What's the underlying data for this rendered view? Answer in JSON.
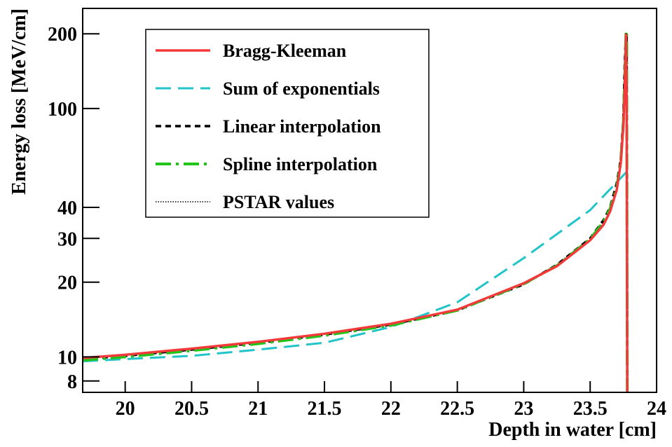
{
  "chart_data": {
    "type": "line",
    "x_label": "Depth in water [cm]",
    "y_label": "Energy loss [MeV/cm]",
    "log_y": true,
    "legend": "upper left",
    "xlim": [
      19.68,
      24
    ],
    "ylim": [
      7.2,
      253
    ],
    "xticks": [
      20,
      20.5,
      21,
      21.5,
      22,
      22.5,
      23,
      23.5,
      24
    ],
    "yticks": [
      8,
      10,
      20,
      30,
      40,
      100,
      200
    ],
    "series": [
      {
        "name": "Bragg-Kleeman",
        "color": "#f33a3a",
        "dash": "none",
        "width": 3.5,
        "x": [
          19.68,
          20,
          20.5,
          21,
          21.5,
          22,
          22.5,
          23,
          23.25,
          23.5,
          23.6,
          23.65,
          23.7,
          23.73,
          23.75,
          23.76,
          23.77,
          23.775,
          23.78
        ],
        "values": [
          9.9,
          10.2,
          10.8,
          11.5,
          12.4,
          13.6,
          15.5,
          19.8,
          23.2,
          29.5,
          34,
          38.5,
          47,
          60,
          85,
          120,
          200,
          100,
          5
        ]
      },
      {
        "name": "Sum of exponentials",
        "color": "#22c4c8",
        "dash": "22,10",
        "width": 3,
        "x": [
          19.68,
          20,
          20.5,
          21,
          21.5,
          22,
          22.5,
          23,
          23.5,
          23.78
        ],
        "values": [
          9.6,
          9.8,
          10.1,
          10.7,
          11.4,
          13.2,
          16.6,
          25,
          39,
          56
        ]
      },
      {
        "name": "Linear interpolation",
        "color": "#000000",
        "dash": "8,6",
        "width": 3.5,
        "x": [
          19.68,
          20,
          20.5,
          21,
          21.5,
          22,
          22.5,
          23,
          23.25,
          23.5,
          23.6,
          23.65,
          23.7,
          23.73,
          23.75,
          23.76,
          23.77,
          23.775,
          23.78
        ],
        "values": [
          9.8,
          10.1,
          10.7,
          11.4,
          12.3,
          13.5,
          15.4,
          19.6,
          23.5,
          30,
          35.5,
          40,
          50,
          62,
          90,
          150,
          200,
          200,
          5
        ]
      },
      {
        "name": "Spline interpolation",
        "color": "#22c41a",
        "dash": "22,7,4,7",
        "width": 4,
        "x": [
          19.68,
          20,
          20.5,
          21,
          21.5,
          22,
          22.5,
          23,
          23.25,
          23.5,
          23.6,
          23.65,
          23.7,
          23.73,
          23.75,
          23.76,
          23.77,
          23.775,
          23.78
        ],
        "values": [
          9.7,
          10.0,
          10.6,
          11.3,
          12.2,
          13.4,
          15.4,
          19.7,
          23.3,
          29.8,
          35,
          39.5,
          48,
          61,
          88,
          130,
          205,
          205,
          5
        ]
      },
      {
        "name": "PSTAR values",
        "color": "#000000",
        "dash": "1.5,2",
        "width": 1.5,
        "x": [
          19.68,
          20,
          20.5,
          21,
          21.5,
          22,
          22.5,
          23,
          23.25,
          23.5,
          23.6,
          23.65,
          23.7,
          23.73,
          23.75,
          23.76,
          23.77,
          23.775,
          23.78
        ],
        "values": [
          9.85,
          10.15,
          10.75,
          11.45,
          12.35,
          13.55,
          15.45,
          19.7,
          23.3,
          29.6,
          34.5,
          39,
          48,
          61,
          88,
          130,
          200,
          200,
          5
        ]
      }
    ]
  }
}
